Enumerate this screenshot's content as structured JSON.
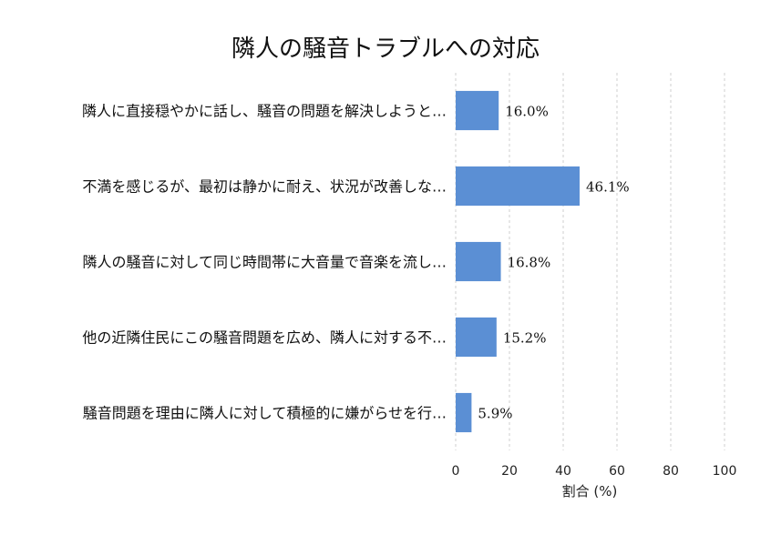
{
  "chart_data": {
    "type": "bar",
    "orientation": "horizontal",
    "title": "隣人の騒音トラブルへの対応",
    "categories": [
      "隣人に直接穏やかに話し、騒音の問題を解決しようと…",
      "不満を感じるが、最初は静かに耐え、状況が改善しな…",
      "隣人の騒音に対して同じ時間帯に大音量で音楽を流し…",
      "他の近隣住民にこの騒音問題を広め、隣人に対する不…",
      "騒音問題を理由に隣人に対して積極的に嫌がらせを行…"
    ],
    "values": [
      16.0,
      46.1,
      16.8,
      15.2,
      5.9
    ],
    "value_labels": [
      "16.0%",
      "46.1%",
      "16.8%",
      "15.2%",
      "5.9%"
    ],
    "xlabel": "割合 (%)",
    "ylabel": "",
    "xlim": [
      0,
      100
    ],
    "xticks": [
      0,
      20,
      40,
      60,
      80,
      100
    ],
    "xtick_labels": [
      "0",
      "20",
      "40",
      "60",
      "80",
      "100"
    ],
    "grid": true,
    "bar_color": "#5b8fd4"
  }
}
